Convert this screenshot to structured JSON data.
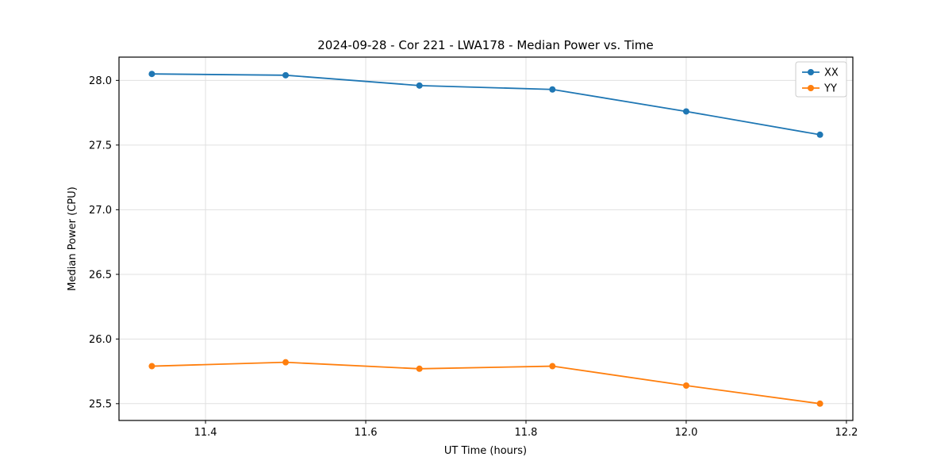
{
  "chart_data": {
    "type": "line",
    "title": "2024-09-28 - Cor 221 - LWA178 - Median Power vs. Time",
    "xlabel": "UT Time (hours)",
    "ylabel": "Median Power (CPU)",
    "x": [
      11.333,
      11.5,
      11.667,
      11.833,
      12.0,
      12.167
    ],
    "series": [
      {
        "name": "XX",
        "color": "#1f77b4",
        "values": [
          28.05,
          28.04,
          27.96,
          27.93,
          27.76,
          27.58
        ]
      },
      {
        "name": "YY",
        "color": "#ff7f0e",
        "values": [
          25.79,
          25.82,
          25.77,
          25.79,
          25.64,
          25.5
        ]
      }
    ],
    "xlim": [
      11.292,
      12.208
    ],
    "ylim": [
      25.37,
      28.18
    ],
    "xticks": [
      11.4,
      11.6,
      11.8,
      12.0,
      12.2
    ],
    "xtick_labels": [
      "11.4",
      "11.6",
      "11.8",
      "12.0",
      "12.2"
    ],
    "yticks": [
      25.5,
      26.0,
      26.5,
      27.0,
      27.5,
      28.0
    ],
    "ytick_labels": [
      "25.5",
      "26.0",
      "26.5",
      "27.0",
      "27.5",
      "28.0"
    ],
    "grid": true,
    "legend": {
      "position": "top-right",
      "entries": [
        "XX",
        "YY"
      ]
    },
    "marker": "circle"
  },
  "colors": {
    "series_xx": "#1f77b4",
    "series_yy": "#ff7f0e",
    "grid": "#e0e0e0",
    "axis": "#000000",
    "background": "#ffffff"
  }
}
